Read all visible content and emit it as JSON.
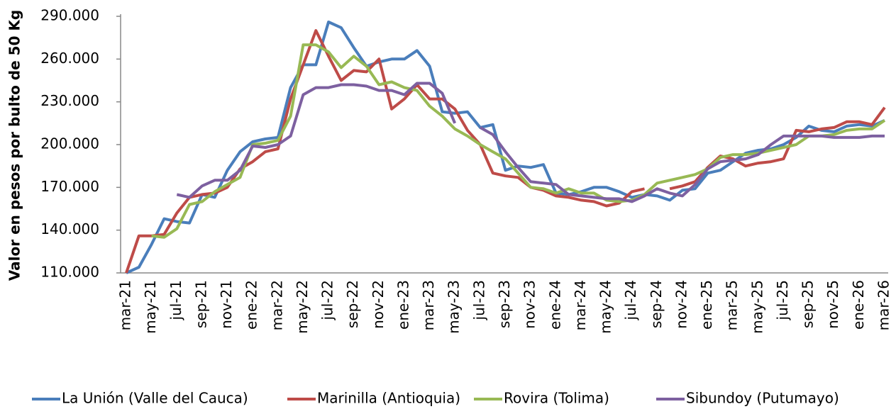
{
  "chart_data": {
    "type": "line",
    "y_label": "Valor en pesos por bulto de 50 Kg",
    "categories": [
      "mar-21",
      null,
      "may-21",
      null,
      "jul-21",
      null,
      "sep-21",
      null,
      "nov-21",
      null,
      "ene-22",
      null,
      "mar-22",
      null,
      "may-22",
      null,
      "jul-22",
      null,
      "sep-22",
      null,
      "nov-22",
      null,
      "ene-23",
      null,
      "mar-23",
      null,
      "may-23",
      null,
      "jul-23",
      null,
      "sep-23",
      null,
      "nov-23",
      null,
      "ene-24",
      null,
      "mar-24",
      null,
      "may-24",
      null,
      "jul-24",
      null,
      "sep-24",
      null,
      "nov-24",
      null,
      "ene-25",
      null,
      "mar-25",
      null,
      "may-25",
      null,
      "jul-25",
      null,
      "sep-25",
      null,
      "nov-25",
      null,
      "ene-26",
      null,
      "mar-26"
    ],
    "ylim": [
      110000,
      290000
    ],
    "yticks": [
      {
        "value": 110000,
        "label": "110.000"
      },
      {
        "value": 140000,
        "label": "140.000"
      },
      {
        "value": 170000,
        "label": "170.000"
      },
      {
        "value": 200000,
        "label": "200.000"
      },
      {
        "value": 230000,
        "label": "230.000"
      },
      {
        "value": 260000,
        "label": "260.000"
      },
      {
        "value": 290000,
        "label": "290.000"
      }
    ],
    "grid": false,
    "legend": "bottom",
    "series": [
      {
        "name": "La Unión (Valle del Cauca)",
        "color": "#4a7ebb",
        "values": [
          110000,
          114000,
          130000,
          148000,
          146000,
          145000,
          165000,
          163000,
          182000,
          195000,
          202000,
          204000,
          205000,
          240000,
          256000,
          256000,
          286000,
          282000,
          268000,
          255000,
          258000,
          260000,
          260000,
          266000,
          255000,
          223000,
          222000,
          223000,
          212000,
          214000,
          182000,
          185000,
          184000,
          186000,
          166000,
          165000,
          167000,
          170000,
          170000,
          167000,
          163000,
          165000,
          164000,
          161000,
          168000,
          169000,
          180000,
          182000,
          188000,
          194000,
          196000,
          197000,
          200000,
          205000,
          213000,
          210000,
          209000,
          213000,
          214000,
          213000,
          217000
        ]
      },
      {
        "name": "Marinilla (Antioquia)",
        "color": "#be4b48",
        "values": [
          110000,
          136000,
          136000,
          137000,
          152000,
          163000,
          165000,
          166000,
          170000,
          183000,
          188000,
          195000,
          197000,
          232000,
          256000,
          280000,
          262000,
          245000,
          252000,
          251000,
          260000,
          225000,
          232000,
          242000,
          232000,
          232000,
          225000,
          210000,
          200000,
          180000,
          178000,
          177000,
          170000,
          168000,
          164000,
          163000,
          161000,
          160000,
          157000,
          159000,
          167000,
          169000,
          null,
          169000,
          171000,
          174000,
          184000,
          192000,
          190000,
          185000,
          187000,
          188000,
          190000,
          210000,
          209000,
          211000,
          212000,
          216000,
          216000,
          214000,
          226000
        ]
      },
      {
        "name": "Rovira (Tolima)",
        "color": "#98b954",
        "values": [
          null,
          null,
          136000,
          135000,
          141000,
          158000,
          160000,
          167000,
          172000,
          177000,
          200000,
          201000,
          203000,
          220000,
          270000,
          270000,
          265000,
          254000,
          262000,
          255000,
          242000,
          244000,
          240000,
          238000,
          227000,
          220000,
          211000,
          206000,
          200000,
          195000,
          190000,
          180000,
          170000,
          169000,
          166000,
          169000,
          166000,
          166000,
          161000,
          160000,
          161000,
          165000,
          173000,
          175000,
          177000,
          179000,
          183000,
          191000,
          193000,
          193000,
          194000,
          196000,
          198000,
          200000,
          206000,
          206000,
          207000,
          210000,
          211000,
          211000,
          217000
        ]
      },
      {
        "name": "Sibundoy (Putumayo)",
        "color": "#7d60a0",
        "values": [
          null,
          null,
          null,
          null,
          165000,
          163000,
          171000,
          175000,
          175000,
          182000,
          199000,
          198000,
          200000,
          206000,
          235000,
          240000,
          240000,
          242000,
          242000,
          241000,
          238000,
          238000,
          235000,
          243000,
          243000,
          236000,
          215000,
          null,
          212000,
          207000,
          195000,
          184000,
          174000,
          173000,
          172000,
          165000,
          164000,
          163000,
          162000,
          162000,
          160000,
          164000,
          169000,
          166000,
          164000,
          172000,
          183000,
          188000,
          189000,
          190000,
          193000,
          200000,
          206000,
          206000,
          206000,
          206000,
          205000,
          205000,
          205000,
          206000,
          206000
        ]
      }
    ]
  }
}
